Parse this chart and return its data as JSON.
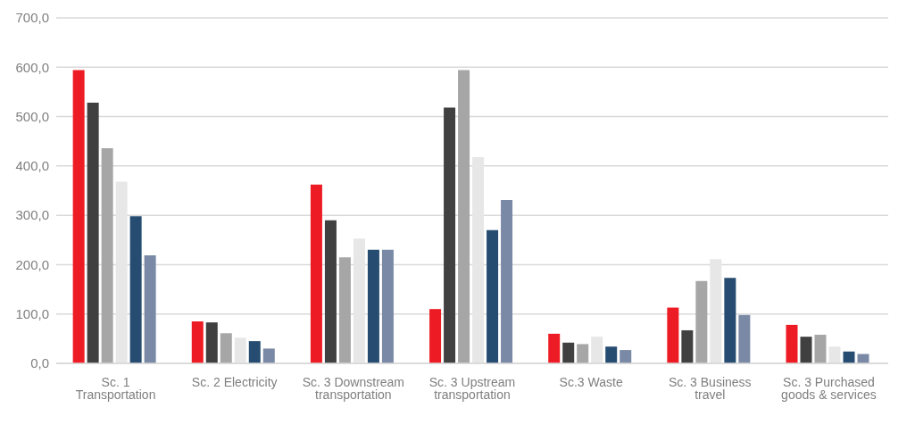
{
  "chart_data": {
    "type": "bar",
    "categories": [
      "Sc. 1 Transportation",
      "Sc. 2 Electricity",
      "Sc. 3 Downstream transportation",
      "Sc. 3 Upstream transportation",
      "Sc.3 Waste",
      "Sc. 3 Business travel",
      "Sc. 3 Purchased goods & services"
    ],
    "series": [
      {
        "color": "#ed1c24",
        "values": [
          594,
          85,
          362,
          110,
          60,
          113,
          78
        ]
      },
      {
        "color": "#404040",
        "values": [
          528,
          83,
          290,
          518,
          42,
          67,
          54
        ]
      },
      {
        "color": "#a6a6a6",
        "values": [
          436,
          61,
          215,
          594,
          39,
          167,
          58
        ]
      },
      {
        "color": "#e7e7e7",
        "values": [
          368,
          52,
          253,
          418,
          54,
          211,
          34
        ]
      },
      {
        "color": "#264d71",
        "values": [
          298,
          45,
          230,
          270,
          34,
          173,
          24
        ]
      },
      {
        "color": "#7a89a5",
        "values": [
          219,
          30,
          230,
          331,
          27,
          98,
          19
        ]
      }
    ],
    "ylim": [
      0,
      700
    ],
    "yticks": [
      {
        "value": 0,
        "label": "0,0"
      },
      {
        "value": 100,
        "label": "100,0"
      },
      {
        "value": 200,
        "label": "200,0"
      },
      {
        "value": 300,
        "label": "300,0"
      },
      {
        "value": 400,
        "label": "400,0"
      },
      {
        "value": 500,
        "label": "500,0"
      },
      {
        "value": 600,
        "label": "600,0"
      },
      {
        "value": 700,
        "label": "700,0"
      }
    ],
    "grid": "y",
    "legend": false
  }
}
